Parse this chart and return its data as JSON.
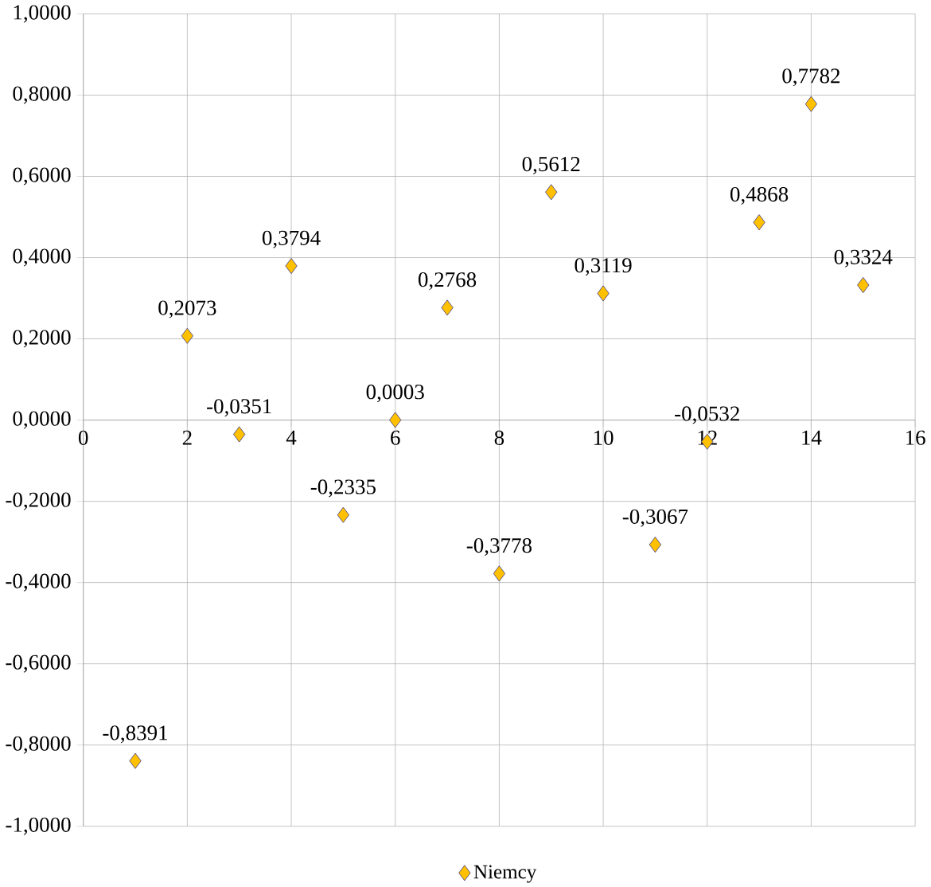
{
  "chart_data": {
    "type": "scatter",
    "x": [
      1,
      2,
      3,
      4,
      5,
      6,
      7,
      8,
      9,
      10,
      11,
      12,
      13,
      14,
      15
    ],
    "series": [
      {
        "name": "Niemcy",
        "color": "#ffc000",
        "values": [
          -0.8391,
          0.2073,
          -0.0351,
          0.3794,
          -0.2335,
          0.0003,
          0.2768,
          -0.3778,
          0.5612,
          0.3119,
          -0.3067,
          -0.0532,
          0.4868,
          0.7782,
          0.3324
        ],
        "value_labels": [
          "-0,8391",
          "0,2073",
          "-0,0351",
          "0,3794",
          "-0,2335",
          "0,0003",
          "0,2768",
          "-0,3778",
          "0,5612",
          "0,3119",
          "-0,3067",
          "-0,0532",
          "0,4868",
          "0,7782",
          "0,3324"
        ]
      }
    ],
    "xlim": [
      0,
      16
    ],
    "xticks": [
      0,
      2,
      4,
      6,
      8,
      10,
      12,
      14,
      16
    ],
    "ylim": [
      -1,
      1
    ],
    "yticks": [
      {
        "value": -1,
        "label": "-1,0000"
      },
      {
        "value": -0.8,
        "label": "-0,8000"
      },
      {
        "value": -0.6,
        "label": "-0,6000"
      },
      {
        "value": -0.4,
        "label": "-0,4000"
      },
      {
        "value": -0.2,
        "label": "-0,2000"
      },
      {
        "value": 0,
        "label": "0,0000"
      },
      {
        "value": 0.2,
        "label": "0,2000"
      },
      {
        "value": 0.4,
        "label": "0,4000"
      },
      {
        "value": 0.6,
        "label": "0,6000"
      },
      {
        "value": 0.8,
        "label": "0,8000"
      },
      {
        "value": 1,
        "label": "1,0000"
      }
    ],
    "grid": true,
    "legend": "bottom",
    "marker": "diamond"
  }
}
